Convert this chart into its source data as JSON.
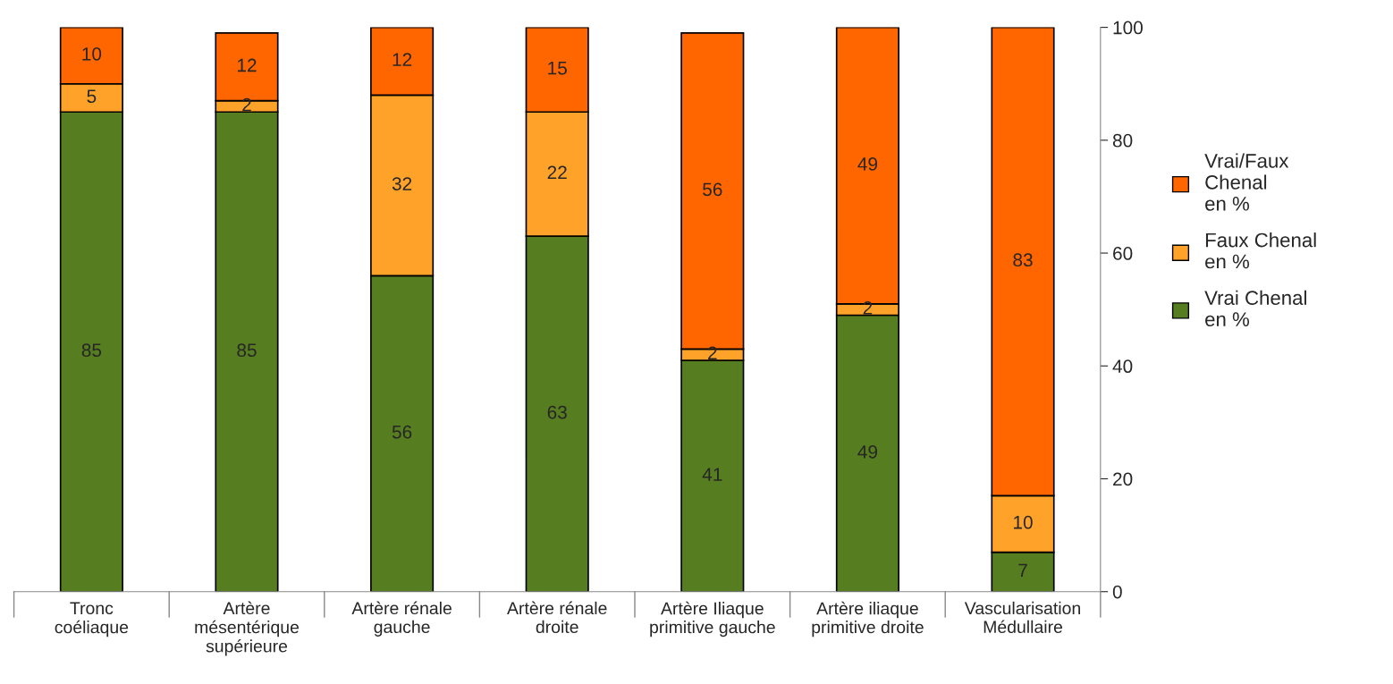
{
  "chart_data": {
    "type": "bar",
    "stacked": true,
    "data_labels": true,
    "categories": [
      "Tronc\ncoéliaque",
      "Artère\nmésentérique\nsupérieure",
      "Artère rénale\ngauche",
      "Artère rénale\ndroite",
      "Artère Iliaque\nprimitive gauche",
      "Artère iliaque\nprimitive droite",
      "Vascularisation\nMédullaire"
    ],
    "series": [
      {
        "name": "Vrai Chenal\nen %",
        "color": "#567d1f",
        "values": [
          85,
          85,
          56,
          63,
          41,
          49,
          7
        ]
      },
      {
        "name": "Faux Chenal\nen %",
        "color": "#ffa22a",
        "values": [
          5,
          2,
          32,
          22,
          2,
          2,
          10
        ]
      },
      {
        "name": "Vrai/Faux\nChenal\nen %",
        "color": "#ff6600",
        "values": [
          10,
          12,
          12,
          15,
          56,
          49,
          83
        ]
      }
    ],
    "ylim": [
      0,
      100
    ],
    "yticks": [
      0,
      20,
      40,
      60,
      80,
      100
    ],
    "grid": false,
    "legend": "right"
  }
}
